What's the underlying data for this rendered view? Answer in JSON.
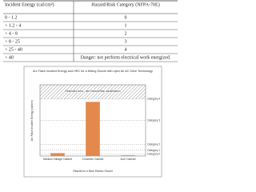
{
  "table": {
    "header": [
      "Incident Energy (cal/cm²)",
      "Hazard/Risk Category (NFPA-70E)"
    ],
    "rows": [
      [
        "0 - 1.2",
        "0"
      ],
      [
        "> 1.2 - 4",
        "1"
      ],
      [
        "> 4 - 8",
        "2"
      ],
      [
        "> 8 - 25",
        "3"
      ],
      [
        "> 25 - 40",
        "4"
      ],
      [
        "> 40",
        "Danger: not perform electrical work energized."
      ]
    ]
  },
  "chart_data": {
    "type": "bar",
    "title": "Arc Flash Incident Energy and HRC for a Mixing Shovel with open Air AC Drive Technology",
    "y_label": "Arc Flash Incident Energy (cal/cm²)",
    "x_label": "Results for a Mine Electric Shovel",
    "categories": [
      "Medium Voltage Cabinet",
      "Converter Cabinet",
      "AUX Cabinet"
    ],
    "values": [
      2,
      38,
      0.5
    ],
    "color": "#e3894b",
    "ylim": [
      0,
      50
    ],
    "restricted": {
      "from": 40,
      "label": "Restricted Area - see Hazard/Risk classification"
    },
    "thresholds": [
      {
        "value": 1.2,
        "label": "Category 0"
      },
      {
        "value": 4,
        "label": "Category 1"
      },
      {
        "value": 8,
        "label": "Category 2"
      },
      {
        "value": 25,
        "label": "Category 3"
      },
      {
        "value": 40,
        "label": "Category 4"
      }
    ]
  }
}
